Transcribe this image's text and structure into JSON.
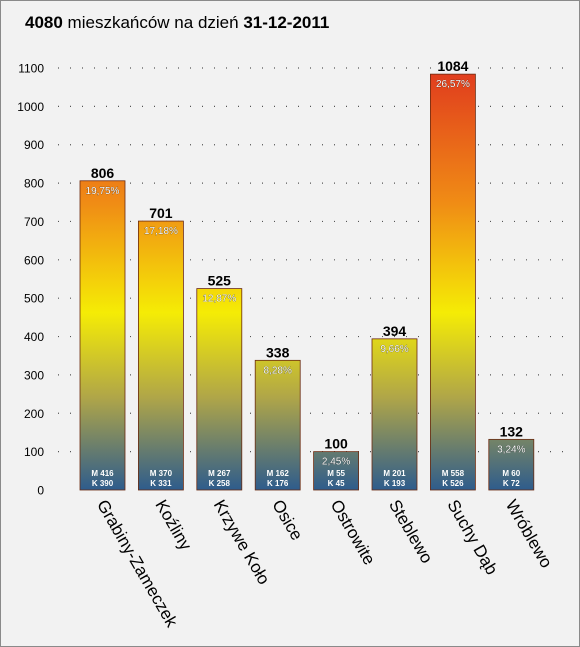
{
  "title": {
    "count": "4080",
    "middle": " mieszkańców na dzień ",
    "date": "31-12-2011"
  },
  "colors": {
    "background": "#f2f2f2",
    "gradient_top": "#e03a1e",
    "gradient_upper": "#f08c15",
    "gradient_middle": "#f5ec05",
    "gradient_lower": "#b0a648",
    "gradient_bottom": "#2e5c8c",
    "grid": "#555555"
  },
  "chart_data": {
    "type": "bar",
    "categories": [
      "Grabiny-Zameczek",
      "Koźliny",
      "Krzywe Koło",
      "Osice",
      "Ostrowite",
      "Steblewo",
      "Suchy Dąb",
      "Wróblewo"
    ],
    "values": [
      806,
      701,
      525,
      338,
      100,
      394,
      1084,
      132
    ],
    "value_labels": [
      "806",
      "701",
      "525",
      "338",
      "100",
      "394",
      "1084",
      "132"
    ],
    "percent_labels": [
      "19,75%",
      "17,18%",
      "12,87%",
      "8,28%",
      "2,45%",
      "9,66%",
      "26,57%",
      "3,24%"
    ],
    "men_labels": [
      "M 416",
      "M 370",
      "M 267",
      "M 162",
      "M 55",
      "M 201",
      "M 558",
      "M 60"
    ],
    "women_labels": [
      "K 390",
      "K 331",
      "K 258",
      "K 176",
      "K 45",
      "K 193",
      "K 526",
      "K 72"
    ],
    "yticks": [
      0,
      100,
      200,
      300,
      400,
      500,
      600,
      700,
      800,
      900,
      1000,
      1100
    ],
    "ylim": [
      0,
      1100
    ],
    "grid": true,
    "xlabel": "",
    "ylabel": ""
  }
}
